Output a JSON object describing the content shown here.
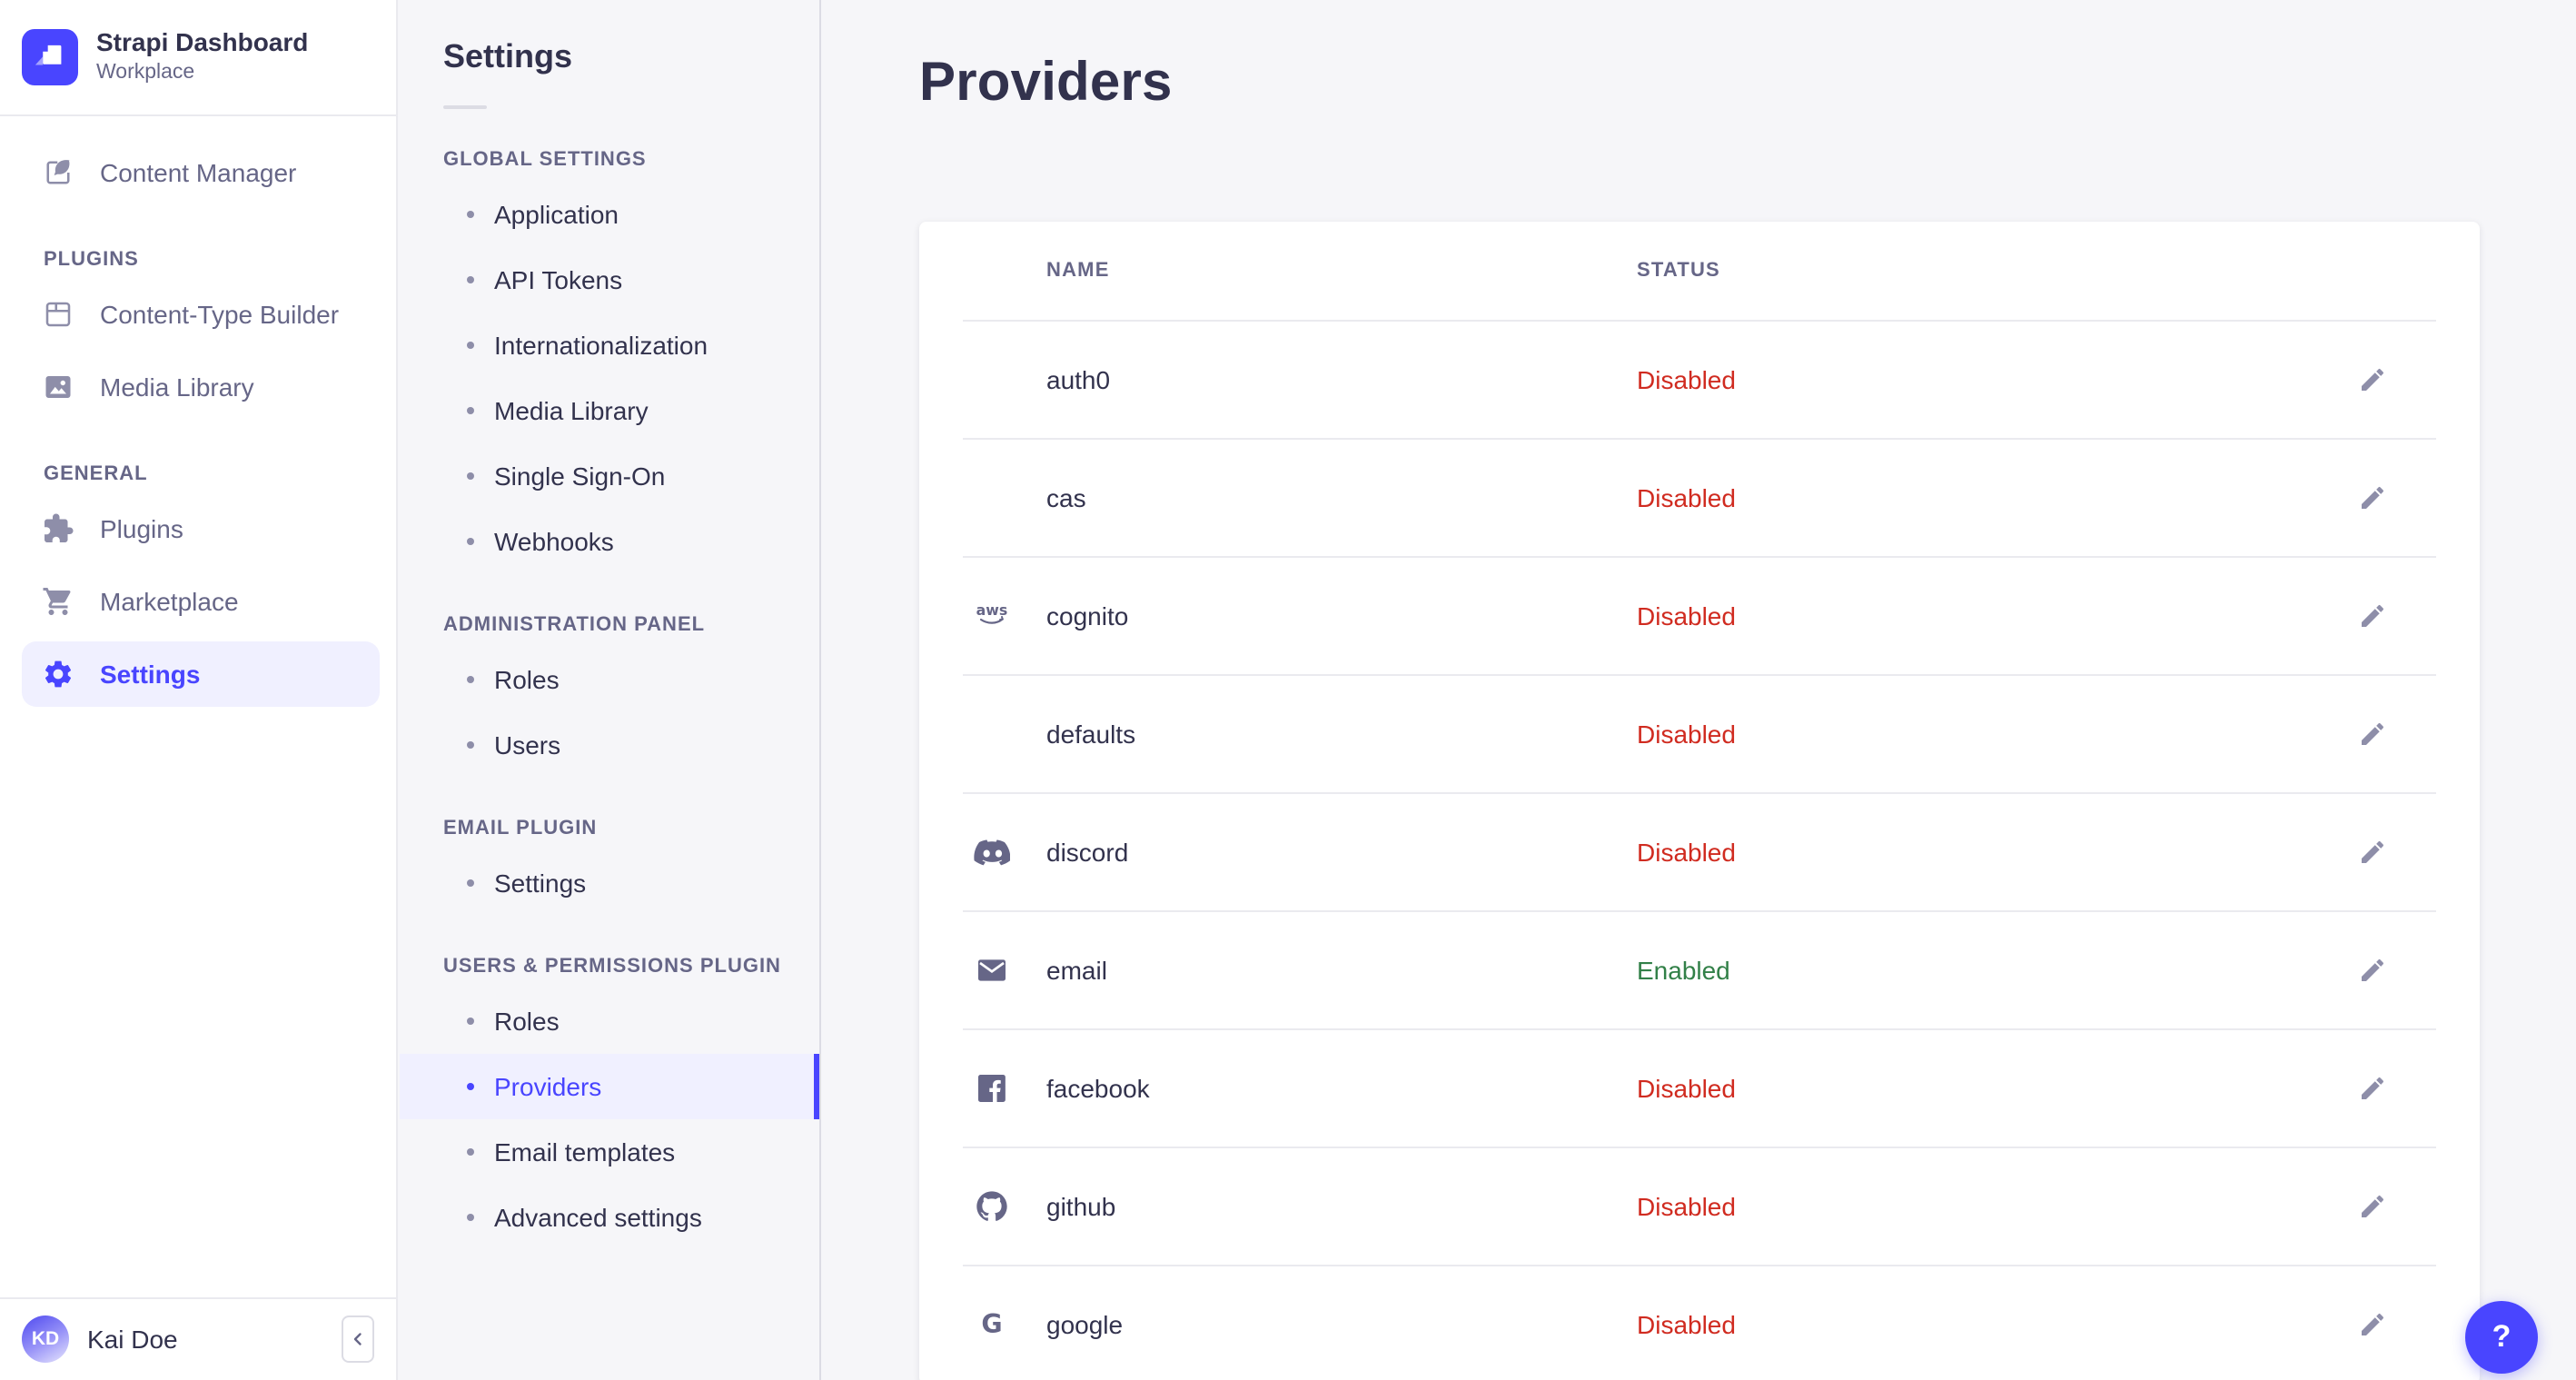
{
  "colors": {
    "primary": "#4945ff",
    "primary_light": "#f0f0ff",
    "danger": "#d02b20",
    "success": "#328048",
    "background": "#f6f6f9",
    "border": "#eaeaef",
    "text": "#32324d",
    "text_secondary": "#666687",
    "icon": "#8e8ea9"
  },
  "sidebar": {
    "brand": {
      "title": "Strapi Dashboard",
      "subtitle": "Workplace",
      "logo_icon": "strapi-logo"
    },
    "primary": [
      {
        "label": "Content Manager",
        "icon": "content-manager-icon",
        "active": false
      }
    ],
    "sections": [
      {
        "label": "PLUGINS",
        "items": [
          {
            "label": "Content-Type Builder",
            "icon": "content-type-builder-icon",
            "active": false
          },
          {
            "label": "Media Library",
            "icon": "media-library-icon",
            "active": false
          }
        ]
      },
      {
        "label": "GENERAL",
        "items": [
          {
            "label": "Plugins",
            "icon": "plugins-icon",
            "active": false
          },
          {
            "label": "Marketplace",
            "icon": "marketplace-icon",
            "active": false
          },
          {
            "label": "Settings",
            "icon": "settings-icon",
            "active": true
          }
        ]
      }
    ],
    "user": {
      "initials": "KD",
      "name": "Kai Doe"
    },
    "collapse_icon": "chevron-left-icon"
  },
  "subnav": {
    "title": "Settings",
    "sections": [
      {
        "label": "GLOBAL SETTINGS",
        "items": [
          {
            "label": "Application",
            "active": false
          },
          {
            "label": "API Tokens",
            "active": false
          },
          {
            "label": "Internationalization",
            "active": false
          },
          {
            "label": "Media Library",
            "active": false
          },
          {
            "label": "Single Sign-On",
            "active": false
          },
          {
            "label": "Webhooks",
            "active": false
          }
        ]
      },
      {
        "label": "ADMINISTRATION PANEL",
        "items": [
          {
            "label": "Roles",
            "active": false
          },
          {
            "label": "Users",
            "active": false
          }
        ]
      },
      {
        "label": "EMAIL PLUGIN",
        "items": [
          {
            "label": "Settings",
            "active": false
          }
        ]
      },
      {
        "label": "USERS & PERMISSIONS PLUGIN",
        "items": [
          {
            "label": "Roles",
            "active": false
          },
          {
            "label": "Providers",
            "active": true
          },
          {
            "label": "Email templates",
            "active": false
          },
          {
            "label": "Advanced settings",
            "active": false
          }
        ]
      }
    ]
  },
  "main": {
    "title": "Providers",
    "table": {
      "columns": [
        "NAME",
        "STATUS"
      ],
      "rows": [
        {
          "name": "auth0",
          "icon": null,
          "status": "Disabled",
          "enabled": false
        },
        {
          "name": "cas",
          "icon": null,
          "status": "Disabled",
          "enabled": false
        },
        {
          "name": "cognito",
          "icon": "aws-icon",
          "status": "Disabled",
          "enabled": false
        },
        {
          "name": "defaults",
          "icon": null,
          "status": "Disabled",
          "enabled": false
        },
        {
          "name": "discord",
          "icon": "discord-icon",
          "status": "Disabled",
          "enabled": false
        },
        {
          "name": "email",
          "icon": "email-icon",
          "status": "Enabled",
          "enabled": true
        },
        {
          "name": "facebook",
          "icon": "facebook-icon",
          "status": "Disabled",
          "enabled": false
        },
        {
          "name": "github",
          "icon": "github-icon",
          "status": "Disabled",
          "enabled": false
        },
        {
          "name": "google",
          "icon": "google-icon",
          "status": "Disabled",
          "enabled": false
        }
      ],
      "row_action_icon": "edit-icon"
    }
  },
  "help_button": {
    "label": "?"
  }
}
